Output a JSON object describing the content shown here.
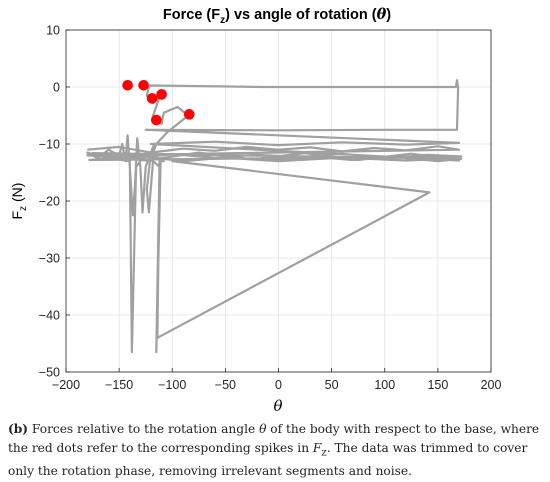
{
  "chart_data": {
    "type": "line",
    "title_prefix": "Force (F",
    "title_sub": "z",
    "title_suffix": ") vs angle of rotation (",
    "title_theta": "θ",
    "title_end": ")",
    "xlabel": "θ",
    "ylabel_main": "F",
    "ylabel_sub": "z",
    "ylabel_unit": " (N)",
    "xlim": [
      -200,
      200
    ],
    "ylim": [
      -50,
      10
    ],
    "x_ticks": [
      "−200",
      "−150",
      "−100",
      "−50",
      "0",
      "50",
      "100",
      "150",
      "200"
    ],
    "y_ticks": [
      "10",
      "0",
      "−10",
      "−20",
      "−30",
      "−40",
      "−50"
    ],
    "grid": true,
    "series_color": "#a0a0a0",
    "marker_color": "#ff0000",
    "series": [
      {
        "values": [
          [
            -180,
            -11
          ],
          [
            -150,
            -10.5
          ],
          [
            -120,
            -11.5
          ],
          [
            -90,
            -10.8
          ],
          [
            -60,
            -11.2
          ],
          [
            -30,
            -10.5
          ],
          [
            0,
            -11
          ],
          [
            30,
            -10.6
          ],
          [
            60,
            -11.3
          ],
          [
            90,
            -10.7
          ],
          [
            120,
            -11.1
          ],
          [
            150,
            -10.4
          ],
          [
            170,
            -11
          ],
          [
            -180,
            -12
          ],
          [
            -140,
            -12.5
          ],
          [
            -100,
            -11.8
          ],
          [
            -60,
            -12.4
          ],
          [
            -20,
            -11.9
          ],
          [
            20,
            -12.3
          ],
          [
            60,
            -11.7
          ],
          [
            100,
            -12.5
          ],
          [
            140,
            -11.9
          ],
          [
            172,
            -12.2
          ],
          [
            -178,
            -12.8
          ],
          [
            -130,
            -12.1
          ],
          [
            -90,
            -13
          ],
          [
            -50,
            -12.4
          ],
          [
            -10,
            -12.9
          ],
          [
            30,
            -12.2
          ],
          [
            70,
            -12.8
          ],
          [
            110,
            -12.3
          ],
          [
            150,
            -13
          ],
          [
            172,
            -12.6
          ],
          [
            -175,
            -11.6
          ],
          [
            -125,
            -12.9
          ],
          [
            -75,
            -11.5
          ],
          [
            -25,
            -12.7
          ],
          [
            25,
            -11.6
          ],
          [
            75,
            -12.8
          ],
          [
            125,
            -11.7
          ],
          [
            170,
            -12.9
          ],
          [
            -120,
            -10
          ],
          [
            -60,
            -9.6
          ],
          [
            0,
            -10.2
          ],
          [
            60,
            -9.7
          ],
          [
            120,
            -10.1
          ],
          [
            170,
            -9.8
          ],
          [
            -125,
            -7.5
          ],
          [
            0,
            -7.6
          ],
          [
            100,
            -7.5
          ],
          [
            168,
            -7.5
          ],
          [
            169,
            -0.2
          ],
          [
            168,
            1.2
          ],
          [
            167,
            0
          ],
          [
            -15,
            0
          ],
          [
            -130,
            0.3
          ],
          [
            -122,
            0
          ],
          [
            -124,
            -1.5
          ],
          [
            -118,
            -2.8
          ],
          [
            -112,
            -1.8
          ],
          [
            -118,
            -5
          ],
          [
            -110,
            -6.5
          ],
          [
            -108,
            -4.5
          ],
          [
            -95,
            -3.5
          ],
          [
            -85,
            -5
          ],
          [
            -105,
            -8
          ],
          [
            -115,
            -10
          ],
          [
            -121,
            -13
          ],
          [
            -124,
            -18
          ],
          [
            -122,
            -22
          ],
          [
            -119,
            -15
          ],
          [
            -117,
            -10
          ],
          [
            -125,
            -14
          ],
          [
            -128,
            -22
          ],
          [
            -130,
            -14
          ],
          [
            -133,
            -9
          ],
          [
            -135,
            -17
          ],
          [
            -137,
            -22.5
          ],
          [
            -140,
            -14
          ],
          [
            -142,
            -8.5
          ],
          [
            -144,
            -13
          ],
          [
            -147,
            -10
          ],
          [
            -150,
            -12
          ],
          [
            -160,
            -11
          ],
          [
            -170,
            -12.5
          ],
          [
            -180,
            -11.5
          ],
          [
            -160,
            -12.5
          ],
          [
            -140,
            -13
          ],
          [
            -138,
            -46.5
          ],
          [
            -134,
            -14
          ],
          [
            -128,
            -12.5
          ],
          [
            -118,
            -13
          ],
          [
            -112,
            -14
          ],
          [
            -115,
            -46.5
          ],
          [
            -111,
            -13
          ],
          [
            -108,
            -13
          ],
          [
            -112,
            -13
          ],
          [
            -114,
            -44
          ],
          [
            142,
            -18.5
          ],
          [
            -100,
            -13
          ],
          [
            -80,
            -12.7
          ],
          [
            -40,
            -12.5
          ],
          [
            0,
            -13
          ],
          [
            60,
            -12.4
          ],
          [
            120,
            -12.9
          ],
          [
            172,
            -12.5
          ]
        ]
      }
    ],
    "markers": [
      [
        -142,
        0.3
      ],
      [
        -127,
        0.3
      ],
      [
        -119,
        -2
      ],
      [
        -110,
        -1.3
      ],
      [
        -115,
        -5.8
      ],
      [
        -84,
        -4.8
      ]
    ]
  },
  "caption": {
    "label": "(b)",
    "text_1": " Forces relative to the rotation angle ",
    "theta": "θ",
    "text_2": " of the body with respect to the base, where the red dots refer to the corresponding spikes in ",
    "f_main": "F",
    "f_sub": "z",
    "text_3": ". The data was trimmed to cover only the rotation phase, removing irrelevant segments and noise."
  }
}
